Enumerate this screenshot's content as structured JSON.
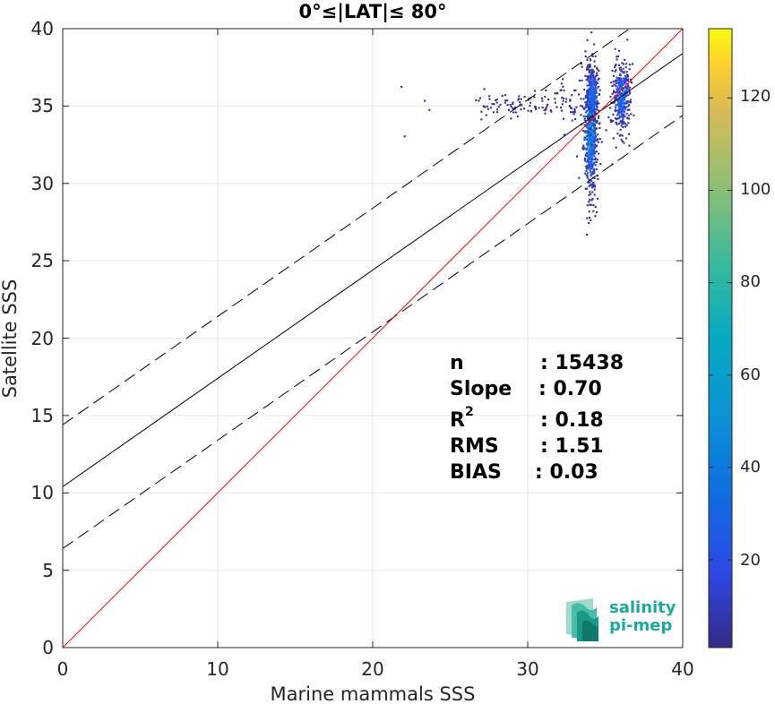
{
  "chart_data": {
    "type": "scatter",
    "title": "0°≤|LAT|≤ 80°",
    "xlabel": "Marine mammals SSS",
    "ylabel": "Satellite SSS",
    "xlim": [
      0,
      40
    ],
    "ylim": [
      0,
      40
    ],
    "xticks": [
      "0",
      "10",
      "20",
      "30",
      "40"
    ],
    "yticks": [
      "0",
      "5",
      "10",
      "15",
      "20",
      "25",
      "30",
      "35",
      "40"
    ],
    "grid": true,
    "colorbar": {
      "range": [
        1,
        135
      ],
      "ticks": [
        "20",
        "40",
        "60",
        "80",
        "100",
        "120"
      ],
      "colormap": "parula"
    },
    "lines": {
      "identity": {
        "slope": 1.0,
        "intercept": 0,
        "color": "#ff0000"
      },
      "fit": {
        "slope": 0.7,
        "intercept": 10.4,
        "color": "#000000"
      },
      "fit_upper": {
        "slope": 0.7,
        "intercept": 14.4,
        "color": "#000000",
        "dashed": true
      },
      "fit_lower": {
        "slope": 0.7,
        "intercept": 6.4,
        "color": "#000000",
        "dashed": true
      }
    },
    "clusters": [
      {
        "x": 34.0,
        "y": 33.5,
        "sx": 0.22,
        "sy": 2.0,
        "n": 650,
        "peak": 60
      },
      {
        "x": 34.1,
        "y": 35.8,
        "sx": 0.2,
        "sy": 1.0,
        "n": 220,
        "peak": 45
      },
      {
        "x": 36.0,
        "y": 35.6,
        "sx": 0.28,
        "sy": 1.1,
        "n": 380,
        "peak": 40
      },
      {
        "x": 29.5,
        "y": 35.2,
        "sx": 1.6,
        "sy": 0.5,
        "n": 90,
        "peak": 8
      },
      {
        "x": 32.5,
        "y": 35.0,
        "sx": 0.8,
        "sy": 0.6,
        "n": 40,
        "peak": 6
      }
    ],
    "outliers": [
      [
        21.8,
        36.3
      ],
      [
        22.0,
        33.1
      ],
      [
        23.3,
        35.4
      ],
      [
        23.6,
        34.8
      ],
      [
        32.3,
        33.2
      ],
      [
        35.0,
        33.5
      ],
      [
        36.5,
        32.5
      ],
      [
        35.4,
        31.3
      ],
      [
        33.4,
        37.8
      ],
      [
        32.2,
        36.8
      ]
    ]
  },
  "stats": {
    "n_label": "n",
    "n_value": ": 15438",
    "slope_label": "Slope",
    "slope_value": ": 0.70",
    "r2_label": "R",
    "r2_sup": "2",
    "r2_value": ": 0.18",
    "rms_label": "RMS",
    "rms_value": ": 1.51",
    "bias_label": "BIAS",
    "bias_value": ": 0.03"
  },
  "logo": {
    "line1": "salinity",
    "line2": "pi-mep"
  }
}
